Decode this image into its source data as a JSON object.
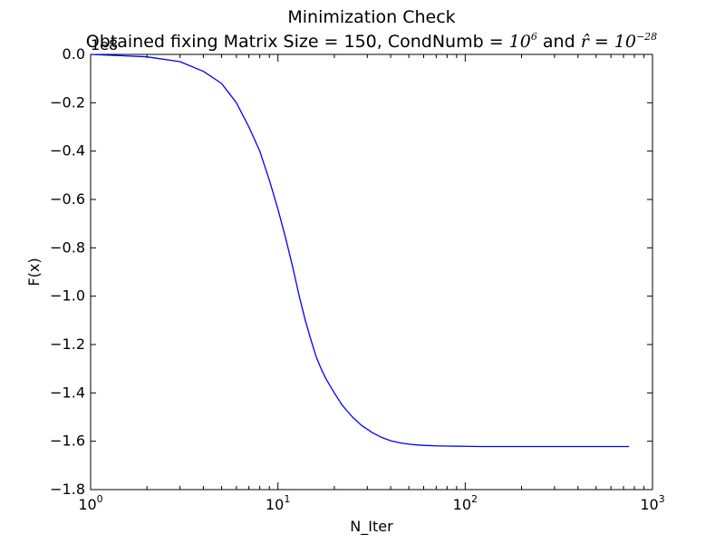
{
  "chart_data": {
    "type": "line",
    "title": "Minimization Check",
    "subtitle": {
      "prefix": "Obtained fixing Matrix Size = 150, CondNumb = ",
      "cond_base": "10",
      "cond_exp": "6",
      "middle": " and ",
      "r_symbol": "r̂",
      "r_eq": " = ",
      "r_base": "10",
      "r_exp": "−28"
    },
    "xlabel": "N_Iter",
    "ylabel": "F(x)",
    "offset_text": "1e8",
    "xscale": "log",
    "xlim": [
      1,
      1000
    ],
    "ylim": [
      -1.8,
      0.0
    ],
    "y_multiplier": 100000000.0,
    "x_ticks": [
      {
        "base": "10",
        "exp": "0",
        "value": 1
      },
      {
        "base": "10",
        "exp": "1",
        "value": 10
      },
      {
        "base": "10",
        "exp": "2",
        "value": 100
      },
      {
        "base": "10",
        "exp": "3",
        "value": 1000
      }
    ],
    "y_ticks": [
      "0.0",
      "−0.2",
      "−0.4",
      "−0.6",
      "−0.8",
      "−1.0",
      "−1.2",
      "−1.4",
      "−1.6",
      "−1.8"
    ],
    "grid": false,
    "series": [
      {
        "color": "#0000ff",
        "x": [
          1,
          2,
          3,
          4,
          5,
          6,
          7,
          8,
          9,
          10,
          11,
          12,
          13,
          14,
          15,
          16,
          17,
          18,
          20,
          22,
          25,
          28,
          32,
          36,
          40,
          45,
          50,
          55,
          60,
          70,
          80,
          100,
          120,
          150,
          200,
          300,
          400,
          500,
          600,
          750
        ],
        "y": [
          0.0,
          -0.01,
          -0.03,
          -0.07,
          -0.12,
          -0.2,
          -0.3,
          -0.4,
          -0.52,
          -0.64,
          -0.76,
          -0.88,
          -1.0,
          -1.1,
          -1.18,
          -1.25,
          -1.3,
          -1.34,
          -1.4,
          -1.45,
          -1.5,
          -1.535,
          -1.565,
          -1.585,
          -1.598,
          -1.607,
          -1.612,
          -1.615,
          -1.617,
          -1.619,
          -1.62,
          -1.621,
          -1.622,
          -1.622,
          -1.622,
          -1.622,
          -1.622,
          -1.622,
          -1.622,
          -1.622
        ]
      }
    ]
  }
}
